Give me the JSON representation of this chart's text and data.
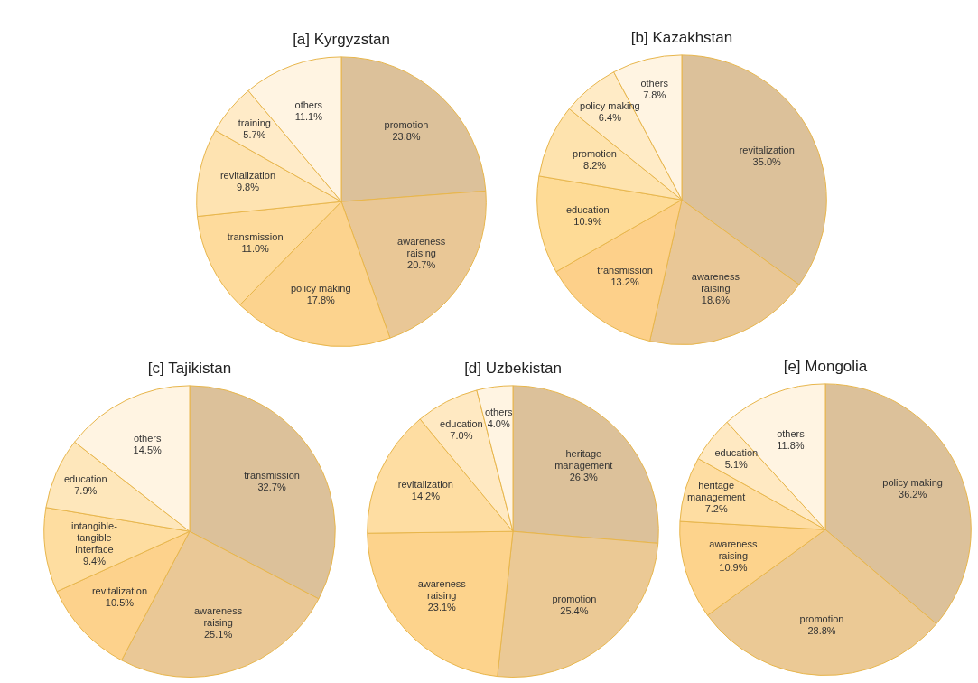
{
  "chart_data": [
    {
      "type": "pie",
      "title": "[a] Kyrgyzstan",
      "categories": [
        "promotion",
        "awareness raising",
        "policy making",
        "transmission",
        "revitalization",
        "training",
        "others"
      ],
      "values": [
        23.8,
        20.7,
        17.8,
        11.0,
        9.8,
        5.7,
        11.1
      ],
      "value_labels": [
        "23.8%",
        "20.7%",
        "17.8%",
        "11.0%",
        "9.8%",
        "5.7%",
        "11.1%"
      ],
      "colors": [
        "#dcc19a",
        "#e9c796",
        "#fcd38e",
        "#fedb9c",
        "#fee3b1",
        "#ffebc8",
        "#fff4e2"
      ]
    },
    {
      "type": "pie",
      "title": "[b] Kazakhstan",
      "categories": [
        "revitalization",
        "awareness raising",
        "transmission",
        "education",
        "promotion",
        "policy making",
        "others"
      ],
      "values": [
        35.0,
        18.6,
        13.2,
        10.9,
        8.2,
        6.4,
        7.8
      ],
      "value_labels": [
        "35.0%",
        "18.6%",
        "13.2%",
        "10.9%",
        "8.2%",
        "6.4%",
        "7.8%"
      ],
      "colors": [
        "#dcc19a",
        "#e9c796",
        "#fdd08a",
        "#fedb96",
        "#fee3ae",
        "#ffebc6",
        "#fff4e2"
      ]
    },
    {
      "type": "pie",
      "title": "[c] Tajikistan",
      "categories": [
        "transmission",
        "awareness raising",
        "revitalization",
        "intangible-tangible interface",
        "education",
        "others"
      ],
      "values": [
        32.7,
        25.1,
        10.5,
        9.4,
        7.9,
        14.5
      ],
      "value_labels": [
        "32.7%",
        "25.1%",
        "10.5%",
        "9.4%",
        "7.9%",
        "14.5%"
      ],
      "colors": [
        "#dcc19a",
        "#eac896",
        "#fdd28c",
        "#fedda0",
        "#fee7bb",
        "#fff4e2"
      ]
    },
    {
      "type": "pie",
      "title": "[d] Uzbekistan",
      "categories": [
        "heritage management",
        "promotion",
        "awareness raising",
        "revitalization",
        "education",
        "others"
      ],
      "values": [
        26.3,
        25.4,
        23.1,
        14.2,
        7.0,
        4.0
      ],
      "value_labels": [
        "26.3%",
        "25.4%",
        "23.1%",
        "14.2%",
        "7.0%",
        "4.0%"
      ],
      "colors": [
        "#dcc19a",
        "#ebc995",
        "#fdd38c",
        "#fedda2",
        "#ffe9c2",
        "#fff4e2"
      ]
    },
    {
      "type": "pie",
      "title": "[e] Mongolia",
      "categories": [
        "policy making",
        "promotion",
        "awareness raising",
        "heritage management",
        "education",
        "others"
      ],
      "values": [
        36.2,
        28.8,
        10.9,
        7.2,
        5.1,
        11.8
      ],
      "value_labels": [
        "36.2%",
        "28.8%",
        "10.9%",
        "7.2%",
        "5.1%",
        "11.8%"
      ],
      "colors": [
        "#dcc19a",
        "#ebc995",
        "#fdd38c",
        "#fedda2",
        "#ffe9c2",
        "#fff4e2"
      ]
    }
  ]
}
